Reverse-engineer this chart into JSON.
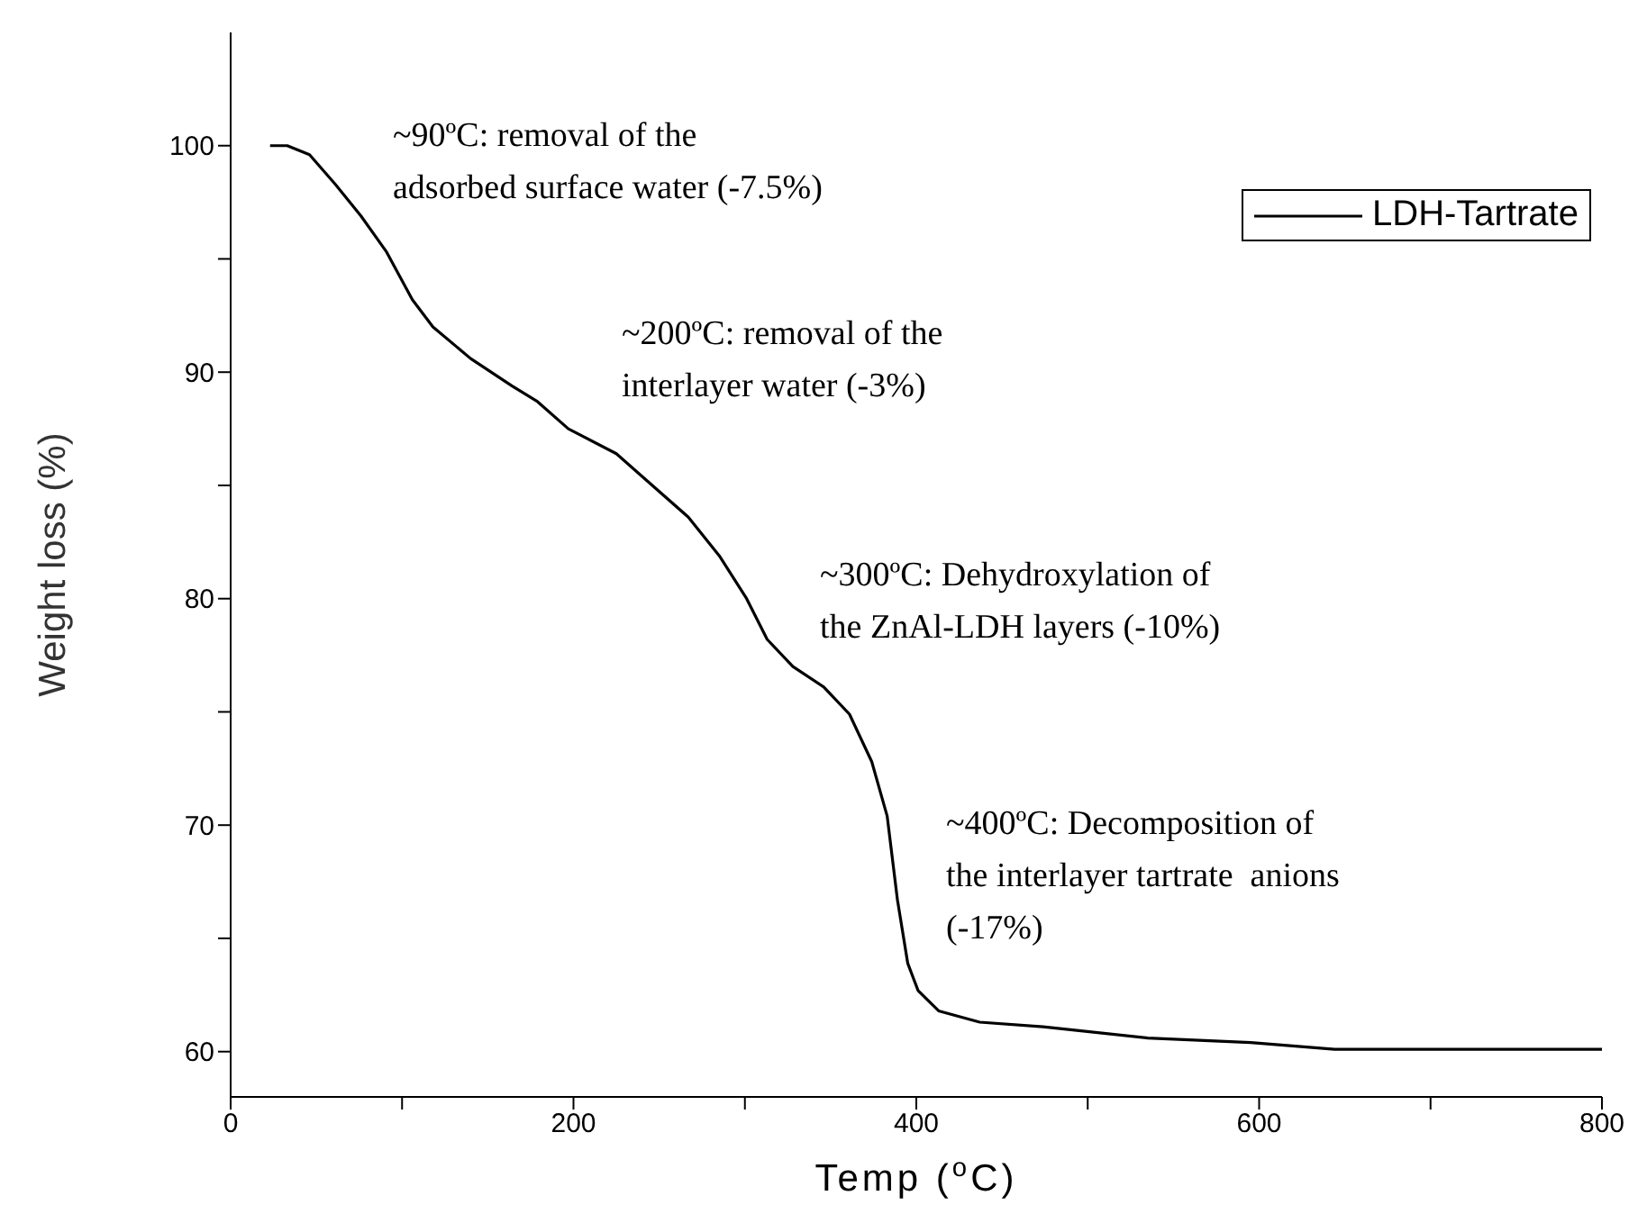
{
  "chart_data": {
    "type": "line",
    "xlabel": "Temp ($^{o}$C)",
    "ylabel": "Weight loss (%)",
    "xlim": [
      0,
      800
    ],
    "ylim": [
      58,
      105
    ],
    "xticks": [
      0,
      {
        "value": 100,
        "label": null
      },
      200,
      {
        "value": 300,
        "label": null
      },
      400,
      {
        "value": 500,
        "label": null
      },
      600,
      {
        "value": 700,
        "label": null
      },
      800
    ],
    "yticks": [
      60,
      {
        "value": 65,
        "label": null
      },
      70,
      {
        "value": 75,
        "label": null
      },
      80,
      {
        "value": 85,
        "label": null
      },
      90,
      {
        "value": 95,
        "label": null
      },
      100
    ],
    "grid": false,
    "legend": "top right",
    "marker": "none",
    "line_style": "solid",
    "annotations": [
      "~90ºC: removal of the\nadsorbed surface water (-7.5%)",
      "~200ºC: removal of the\ninterlayer water (-3%)",
      "~300ºC: Dehydroxylation of\nthe ZnAl-LDH layers (-10%)",
      "~400ºC: Decomposition of\nthe interlayer tartrate  anions\n(-17%)"
    ],
    "series": [
      {
        "name": "LDH-Tartrate",
        "color": "#000000",
        "x": [
          23,
          33,
          46,
          61,
          76,
          91,
          106,
          118,
          140,
          164,
          179,
          197,
          225,
          243,
          267,
          285,
          301,
          313,
          328,
          346,
          361,
          374,
          383,
          389,
          395,
          401,
          413,
          437,
          474,
          535,
          595,
          644,
          800
        ],
        "values": [
          100,
          100,
          99.6,
          98.3,
          96.9,
          95.3,
          93.2,
          92.0,
          90.6,
          89.4,
          88.7,
          87.5,
          86.4,
          85.2,
          83.6,
          81.9,
          80.0,
          78.2,
          77.0,
          76.1,
          74.9,
          72.8,
          70.4,
          66.7,
          63.9,
          62.7,
          61.8,
          61.3,
          61.1,
          60.6,
          60.4,
          60.1,
          60.1
        ]
      }
    ]
  }
}
